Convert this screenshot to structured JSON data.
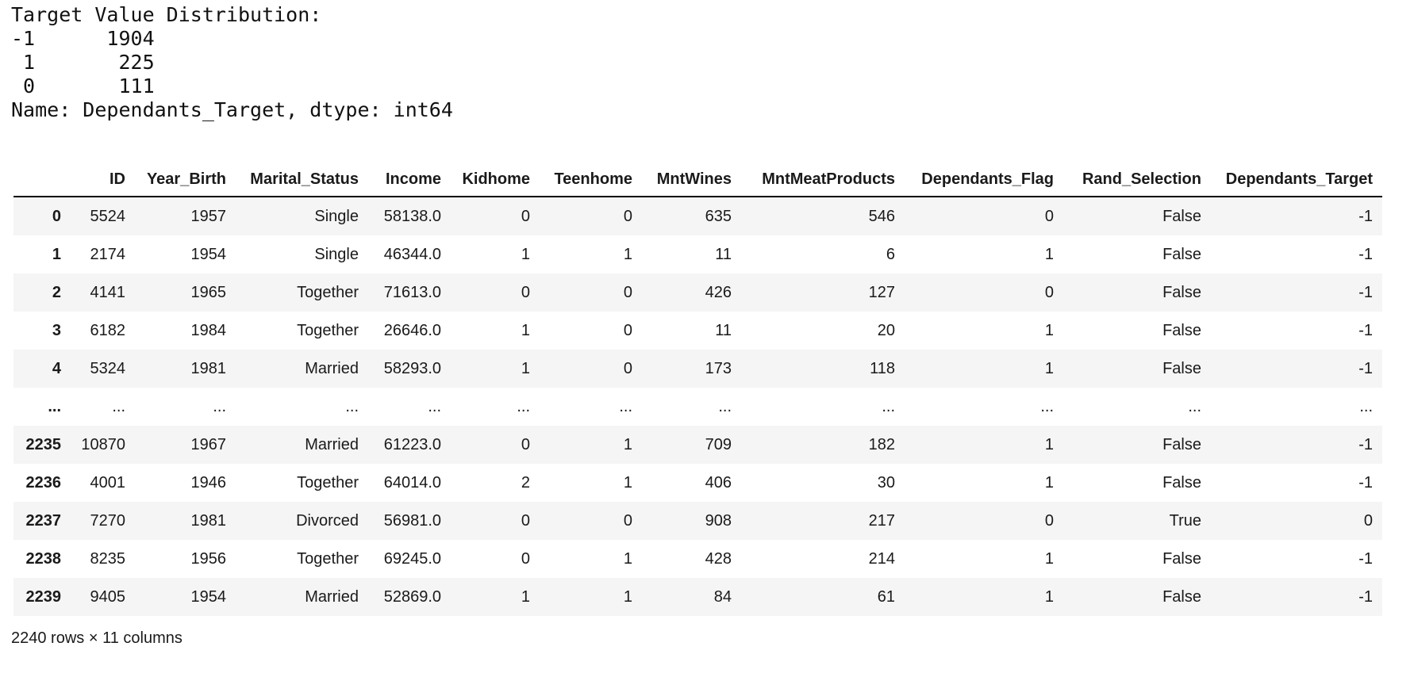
{
  "console_output": {
    "lines": [
      "Target Value Distribution:",
      "-1      1904",
      " 1       225",
      " 0       111",
      "Name: Dependants_Target, dtype: int64"
    ]
  },
  "dataframe": {
    "columns": [
      "ID",
      "Year_Birth",
      "Marital_Status",
      "Income",
      "Kidhome",
      "Teenhome",
      "MntWines",
      "MntMeatProducts",
      "Dependants_Flag",
      "Rand_Selection",
      "Dependants_Target"
    ],
    "rows": [
      {
        "index": "0",
        "cells": [
          "5524",
          "1957",
          "Single",
          "58138.0",
          "0",
          "0",
          "635",
          "546",
          "0",
          "False",
          "-1"
        ]
      },
      {
        "index": "1",
        "cells": [
          "2174",
          "1954",
          "Single",
          "46344.0",
          "1",
          "1",
          "11",
          "6",
          "1",
          "False",
          "-1"
        ]
      },
      {
        "index": "2",
        "cells": [
          "4141",
          "1965",
          "Together",
          "71613.0",
          "0",
          "0",
          "426",
          "127",
          "0",
          "False",
          "-1"
        ]
      },
      {
        "index": "3",
        "cells": [
          "6182",
          "1984",
          "Together",
          "26646.0",
          "1",
          "0",
          "11",
          "20",
          "1",
          "False",
          "-1"
        ]
      },
      {
        "index": "4",
        "cells": [
          "5324",
          "1981",
          "Married",
          "58293.0",
          "1",
          "0",
          "173",
          "118",
          "1",
          "False",
          "-1"
        ]
      },
      {
        "index": "...",
        "cells": [
          "...",
          "...",
          "...",
          "...",
          "...",
          "...",
          "...",
          "...",
          "...",
          "...",
          "..."
        ]
      },
      {
        "index": "2235",
        "cells": [
          "10870",
          "1967",
          "Married",
          "61223.0",
          "0",
          "1",
          "709",
          "182",
          "1",
          "False",
          "-1"
        ]
      },
      {
        "index": "2236",
        "cells": [
          "4001",
          "1946",
          "Together",
          "64014.0",
          "2",
          "1",
          "406",
          "30",
          "1",
          "False",
          "-1"
        ]
      },
      {
        "index": "2237",
        "cells": [
          "7270",
          "1981",
          "Divorced",
          "56981.0",
          "0",
          "0",
          "908",
          "217",
          "0",
          "True",
          "0"
        ]
      },
      {
        "index": "2238",
        "cells": [
          "8235",
          "1956",
          "Together",
          "69245.0",
          "0",
          "1",
          "428",
          "214",
          "1",
          "False",
          "-1"
        ]
      },
      {
        "index": "2239",
        "cells": [
          "9405",
          "1954",
          "Married",
          "52869.0",
          "1",
          "1",
          "84",
          "61",
          "1",
          "False",
          "-1"
        ]
      }
    ],
    "summary": "2240 rows × 11 columns"
  },
  "colors": {
    "stripe": "#f5f5f5",
    "text": "#1a1a1a",
    "header_border": "#000000",
    "background": "#ffffff"
  }
}
